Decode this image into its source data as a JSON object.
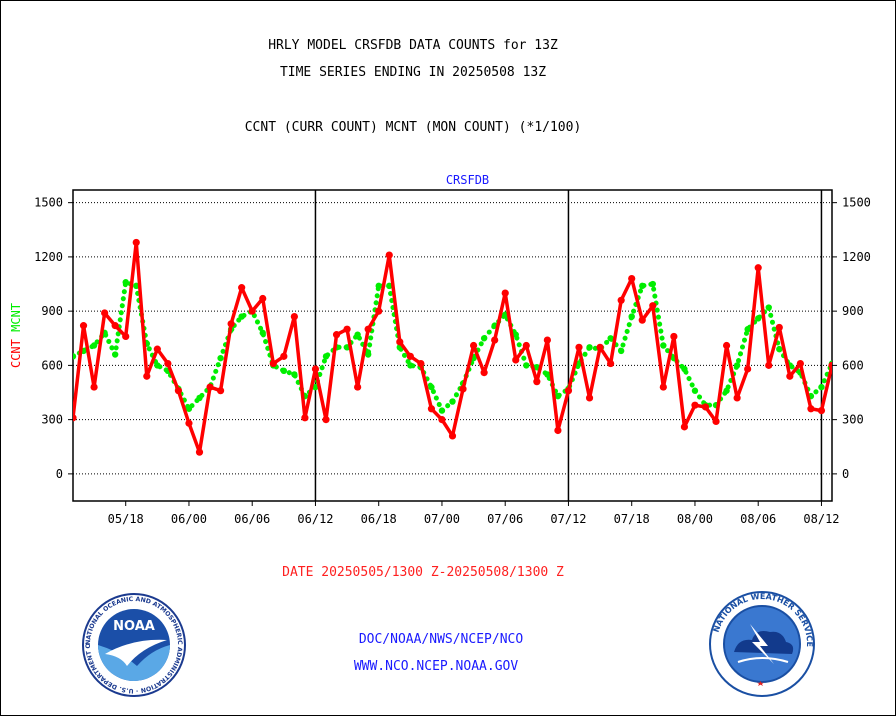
{
  "header": {
    "title_line1": "HRLY MODEL CRSFDB DATA COUNTS for 13Z",
    "title_line2": "TIME SERIES ENDING IN 20250508 13Z",
    "subtitle": "CCNT (CURR COUNT) MCNT (MON COUNT) (*1/100)"
  },
  "footer": {
    "date_range": "DATE 20250505/1300 Z-20250508/1300 Z",
    "org_line": "DOC/NOAA/NWS/NCEP/NCO",
    "url_line": "WWW.NCO.NCEP.NOAA.GOV"
  },
  "logos": {
    "noaa_label": "NOAA",
    "noaa_ring_text": "NATIONAL OCEANIC AND ATMOSPHERIC ADMINISTRATION · U.S. DEPARTMENT OF COMMERCE",
    "nws_ring_text": "NATIONAL WEATHER SERVICE"
  },
  "colors": {
    "ccnt": "#ff0000",
    "mcnt": "#00ee00",
    "label_blue": "#1a1aff",
    "date_red": "#ff2020"
  },
  "chart_data": {
    "type": "line",
    "title": "CRSFDB",
    "ylabel_left": [
      "CCNT",
      "MCNT"
    ],
    "ylim": [
      -150,
      1570
    ],
    "yticks": [
      0,
      300,
      600,
      900,
      1200,
      1500
    ],
    "x_tick_labels": [
      "05/18",
      "06/00",
      "06/06",
      "06/12",
      "06/18",
      "07/00",
      "07/06",
      "07/12",
      "07/18",
      "08/00",
      "08/06",
      "08/12"
    ],
    "x_tick_positions": [
      9,
      15,
      21,
      27,
      33,
      39,
      45,
      51,
      57,
      63,
      69,
      75
    ],
    "day_separators": [
      27,
      51,
      75
    ],
    "x_range": [
      4,
      76
    ],
    "grid": true,
    "series": [
      {
        "name": "CCNT",
        "color": "#ff0000",
        "x": [
          4,
          5,
          6,
          7,
          8,
          9,
          10,
          11,
          12,
          13,
          14,
          15,
          16,
          17,
          18,
          19,
          20,
          21,
          22,
          23,
          24,
          25,
          26,
          27,
          28,
          29,
          30,
          31,
          32,
          33,
          34,
          35,
          36,
          37,
          38,
          39,
          40,
          41,
          42,
          43,
          44,
          45,
          46,
          47,
          48,
          49,
          50,
          51,
          52,
          53,
          54,
          55,
          56,
          57,
          58,
          59,
          60,
          61,
          62,
          63,
          64,
          65,
          66,
          67,
          68,
          69,
          70,
          71,
          72,
          73,
          74,
          75,
          76
        ],
        "values": [
          310,
          820,
          480,
          890,
          820,
          760,
          1280,
          540,
          690,
          610,
          460,
          280,
          120,
          480,
          460,
          830,
          1030,
          900,
          970,
          610,
          650,
          870,
          310,
          580,
          300,
          770,
          800,
          480,
          800,
          900,
          1210,
          730,
          650,
          610,
          360,
          300,
          210,
          470,
          710,
          560,
          740,
          1000,
          630,
          710,
          510,
          740,
          240,
          460,
          700,
          420,
          700,
          610,
          960,
          1080,
          850,
          930,
          480,
          760,
          260,
          380,
          370,
          290,
          710,
          420,
          580,
          1140,
          600,
          810,
          540,
          610,
          360,
          350,
          600
        ]
      },
      {
        "name": "MCNT",
        "color": "#00ee00",
        "x": [
          4,
          5,
          6,
          7,
          8,
          9,
          10,
          11,
          12,
          13,
          14,
          15,
          16,
          17,
          18,
          19,
          20,
          21,
          22,
          23,
          24,
          25,
          26,
          27,
          28,
          29,
          30,
          31,
          32,
          33,
          34,
          35,
          36,
          37,
          38,
          39,
          40,
          41,
          42,
          43,
          44,
          45,
          46,
          47,
          48,
          49,
          50,
          51,
          52,
          53,
          54,
          55,
          56,
          57,
          58,
          59,
          60,
          61,
          62,
          63,
          64,
          65,
          66,
          67,
          68,
          69,
          70,
          71,
          72,
          73,
          74,
          75,
          76
        ],
        "values": [
          650,
          680,
          710,
          780,
          660,
          1060,
          1040,
          720,
          600,
          570,
          470,
          360,
          420,
          480,
          640,
          800,
          870,
          900,
          780,
          600,
          570,
          550,
          430,
          480,
          650,
          700,
          700,
          770,
          660,
          1040,
          1040,
          700,
          600,
          590,
          480,
          350,
          400,
          500,
          640,
          750,
          820,
          880,
          770,
          600,
          590,
          550,
          430,
          470,
          610,
          700,
          690,
          750,
          680,
          870,
          1040,
          1050,
          710,
          640,
          580,
          460,
          380,
          380,
          460,
          600,
          800,
          860,
          920,
          690,
          600,
          560,
          430,
          480,
          610
        ]
      }
    ]
  }
}
